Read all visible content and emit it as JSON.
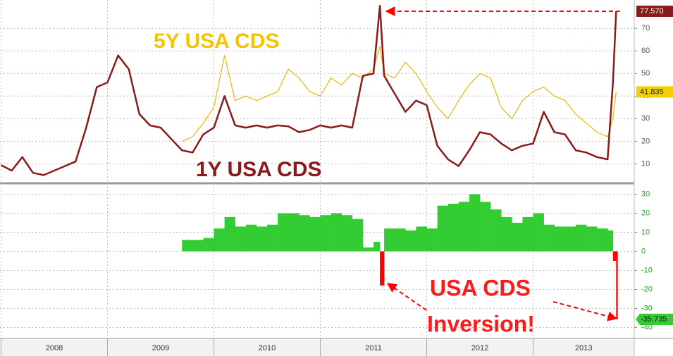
{
  "chart_data": [
    {
      "type": "line",
      "x": [
        2008.0,
        2008.1,
        2008.2,
        2008.3,
        2008.4,
        2008.5,
        2008.6,
        2008.7,
        2008.8,
        2008.9,
        2009.0,
        2009.1,
        2009.2,
        2009.3,
        2009.4,
        2009.5,
        2009.6,
        2009.7,
        2009.8,
        2009.9,
        2010.0,
        2010.1,
        2010.2,
        2010.3,
        2010.4,
        2010.5,
        2010.6,
        2010.7,
        2010.8,
        2010.9,
        2011.0,
        2011.1,
        2011.2,
        2011.3,
        2011.4,
        2011.5,
        2011.56,
        2011.6,
        2011.7,
        2011.8,
        2011.9,
        2012.0,
        2012.1,
        2012.2,
        2012.3,
        2012.4,
        2012.5,
        2012.6,
        2012.7,
        2012.8,
        2012.9,
        2013.0,
        2013.1,
        2013.2,
        2013.3,
        2013.4,
        2013.5,
        2013.6,
        2013.7,
        2013.75,
        2013.78
      ],
      "series": [
        {
          "name": "1Y USA CDS",
          "color": "#8b1a1a",
          "values": [
            9.4,
            7,
            13,
            6,
            5,
            7,
            9,
            11,
            26,
            44,
            46,
            58,
            52,
            32,
            27,
            26,
            21,
            16,
            15,
            23,
            26,
            40,
            27,
            26,
            27,
            26,
            27,
            26.6,
            24,
            25,
            27,
            26,
            27,
            26,
            49,
            50,
            80,
            49,
            41,
            33,
            38,
            36,
            18,
            12,
            9,
            16,
            24,
            23,
            19,
            16,
            18,
            19,
            33,
            24,
            23,
            16,
            15,
            13,
            12,
            46,
            77.57
          ],
          "value_labels": [
            null,
            null,
            null,
            null,
            null,
            null,
            null,
            null,
            null,
            null,
            null,
            null,
            null,
            null,
            null,
            null,
            null,
            null,
            null,
            null,
            null,
            null,
            null,
            null,
            null,
            null,
            null,
            null,
            null,
            null,
            null,
            null,
            null,
            null,
            null,
            null,
            null,
            null,
            null,
            null,
            null,
            null,
            null,
            null,
            null,
            null,
            null,
            null,
            null,
            null,
            null,
            null,
            null,
            null,
            null,
            null,
            null,
            null,
            null,
            null,
            "77.570"
          ]
        },
        {
          "name": "5Y USA CDS",
          "color": "#e6b800",
          "values": [
            null,
            null,
            null,
            null,
            null,
            null,
            null,
            null,
            null,
            null,
            null,
            null,
            null,
            null,
            null,
            null,
            null,
            20,
            22,
            28,
            35,
            58,
            38,
            40,
            38,
            40,
            42,
            52,
            48,
            42,
            40,
            48,
            45,
            50,
            48,
            52,
            62,
            50,
            48,
            55,
            50,
            42,
            35,
            30,
            38,
            45,
            50,
            48,
            35,
            30,
            38,
            42,
            44,
            40,
            38,
            32,
            28,
            24,
            22,
            30,
            41.835
          ]
        }
      ],
      "xlim": [
        2007.99,
        2013.95
      ],
      "ylim": [
        2,
        81
      ],
      "yticks": [
        10,
        20,
        30,
        40,
        50,
        60,
        70
      ],
      "grid": true
    },
    {
      "type": "bar",
      "x": [
        2008.0,
        2008.1,
        2008.2,
        2008.3,
        2008.4,
        2008.5,
        2008.6,
        2008.7,
        2008.8,
        2008.9,
        2009.0,
        2009.1,
        2009.2,
        2009.3,
        2009.4,
        2009.5,
        2009.6,
        2009.7,
        2009.8,
        2009.9,
        2010.0,
        2010.1,
        2010.2,
        2010.3,
        2010.4,
        2010.5,
        2010.6,
        2010.7,
        2010.8,
        2010.9,
        2011.0,
        2011.1,
        2011.2,
        2011.3,
        2011.4,
        2011.5,
        2011.56,
        2011.6,
        2011.7,
        2011.8,
        2011.9,
        2012.0,
        2012.1,
        2012.2,
        2012.3,
        2012.4,
        2012.5,
        2012.6,
        2012.7,
        2012.8,
        2012.9,
        2013.0,
        2013.1,
        2013.2,
        2013.3,
        2013.4,
        2013.5,
        2013.6,
        2013.7,
        2013.75,
        2013.78
      ],
      "values": [
        null,
        null,
        null,
        null,
        null,
        null,
        null,
        null,
        null,
        null,
        null,
        null,
        null,
        null,
        null,
        null,
        null,
        6,
        6,
        7,
        12,
        18,
        13,
        14,
        13,
        14,
        20,
        20,
        19,
        18,
        19,
        20,
        19,
        17,
        2,
        5,
        -18,
        12,
        12,
        11,
        13,
        12,
        24,
        25,
        26,
        30,
        26,
        22,
        18,
        15,
        18,
        20,
        14,
        13,
        13,
        14,
        13,
        12,
        11,
        -5,
        -35.735
      ],
      "color": "#33cc33",
      "negative_color": "#ff0000",
      "xlim": [
        2007.99,
        2013.95
      ],
      "ylim": [
        -45,
        35
      ],
      "yticks": [
        30,
        20,
        10,
        0,
        -10,
        -20,
        -30,
        -40
      ],
      "xticks": [
        2008,
        2009,
        2010,
        2011,
        2012,
        2013
      ],
      "annotations": [
        "USA CDS",
        "Inversion!"
      ],
      "grid": true
    }
  ]
}
